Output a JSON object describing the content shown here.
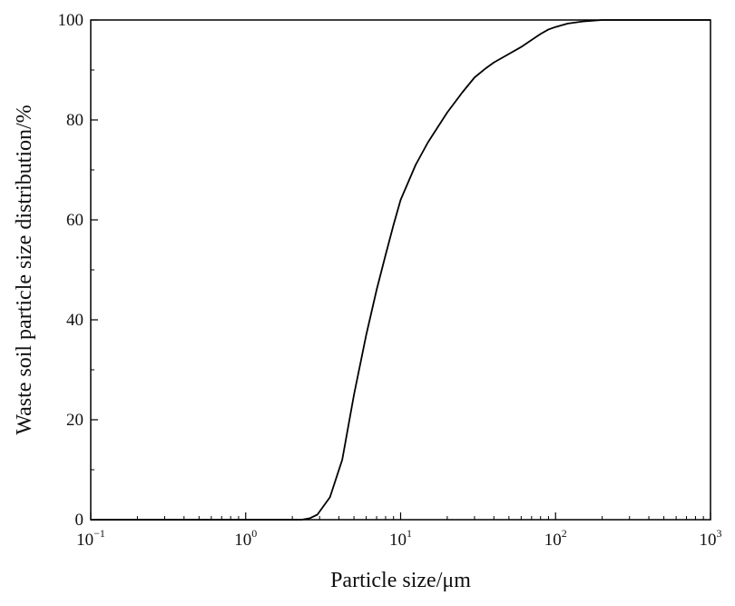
{
  "chart_data": {
    "type": "line",
    "xlabel": "Particle size/μm",
    "ylabel": "Waste soil particle size distribution/%",
    "x_scale": "log",
    "xlim": [
      0.1,
      1000
    ],
    "ylim": [
      0,
      100
    ],
    "x_ticks": [
      {
        "base": "10",
        "exp": "−1",
        "value": 0.1
      },
      {
        "base": "10",
        "exp": "0",
        "value": 1
      },
      {
        "base": "10",
        "exp": "1",
        "value": 10
      },
      {
        "base": "10",
        "exp": "2",
        "value": 100
      },
      {
        "base": "10",
        "exp": "3",
        "value": 1000
      }
    ],
    "y_ticks": [
      {
        "label": "0",
        "value": 0
      },
      {
        "label": "20",
        "value": 20
      },
      {
        "label": "40",
        "value": 40
      },
      {
        "label": "60",
        "value": 60
      },
      {
        "label": "80",
        "value": 80
      },
      {
        "label": "100",
        "value": 100
      }
    ],
    "grid": false,
    "series": [
      {
        "color": "#000000",
        "points": [
          [
            0.1,
            0
          ],
          [
            1,
            0
          ],
          [
            2.3,
            0
          ],
          [
            2.6,
            0.3
          ],
          [
            2.9,
            1.0
          ],
          [
            3.5,
            4.5
          ],
          [
            4.2,
            12
          ],
          [
            5,
            25
          ],
          [
            6,
            37
          ],
          [
            7,
            46
          ],
          [
            8,
            53
          ],
          [
            9,
            59
          ],
          [
            10,
            64
          ],
          [
            12.5,
            71
          ],
          [
            15,
            75.5
          ],
          [
            20,
            81.5
          ],
          [
            25,
            85.5
          ],
          [
            30,
            88.5
          ],
          [
            35,
            90.2
          ],
          [
            40,
            91.5
          ],
          [
            50,
            93.2
          ],
          [
            60,
            94.6
          ],
          [
            70,
            96
          ],
          [
            80,
            97.2
          ],
          [
            90,
            98.1
          ],
          [
            100,
            98.6
          ],
          [
            120,
            99.3
          ],
          [
            150,
            99.7
          ],
          [
            200,
            100
          ],
          [
            1000,
            100
          ]
        ]
      }
    ]
  }
}
